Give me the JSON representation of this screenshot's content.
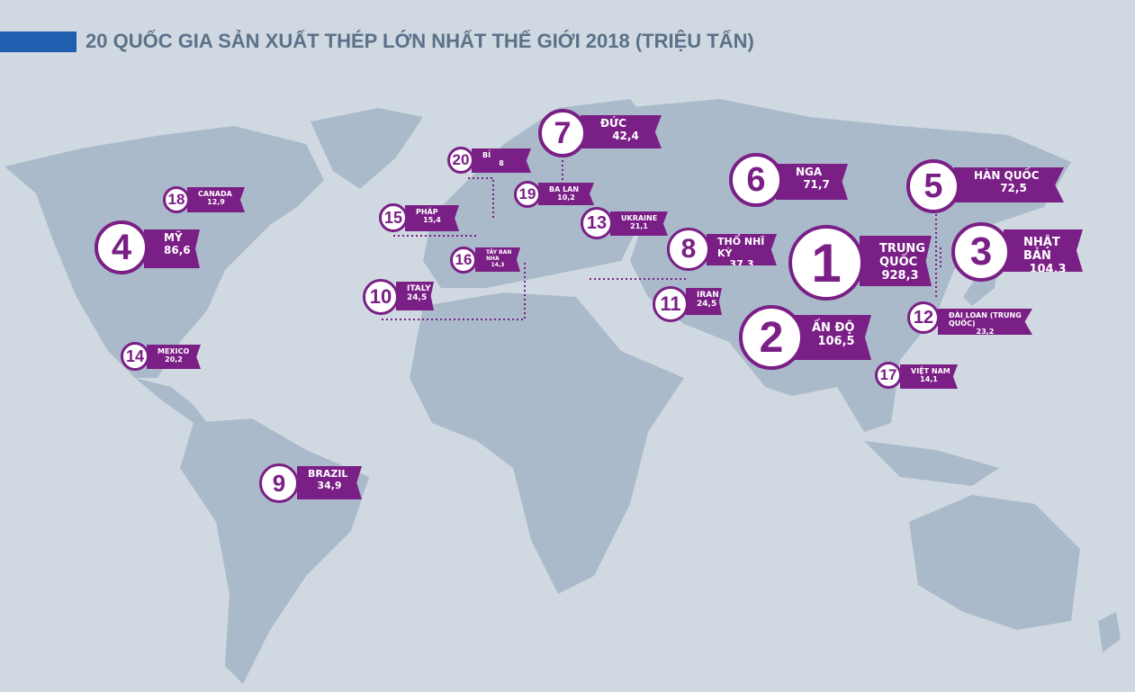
{
  "header": {
    "title": "20 QUỐC GIA SẢN XUẤT THÉP LỚN NHẤT THẾ GIỚI 2018 (TRIỆU TẤN)"
  },
  "markers": [
    {
      "rank": "1",
      "name": "TRUNG QUỐC",
      "value": "928,3"
    },
    {
      "rank": "2",
      "name": "ẤN ĐỘ",
      "value": "106,5"
    },
    {
      "rank": "3",
      "name": "NHẬT BẢN",
      "value": "104,3"
    },
    {
      "rank": "4",
      "name": "MỸ",
      "value": "86,6"
    },
    {
      "rank": "5",
      "name": "HÀN QUỐC",
      "value": "72,5"
    },
    {
      "rank": "6",
      "name": "NGA",
      "value": "71,7"
    },
    {
      "rank": "7",
      "name": "ĐỨC",
      "value": "42,4"
    },
    {
      "rank": "8",
      "name": "THỔ NHĨ KỲ",
      "value": "37,3"
    },
    {
      "rank": "9",
      "name": "BRAZIL",
      "value": "34,9"
    },
    {
      "rank": "10",
      "name": "ITALY",
      "value": "24,5"
    },
    {
      "rank": "11",
      "name": "IRAN",
      "value": "24,5"
    },
    {
      "rank": "12",
      "name": "ĐÀI LOAN (TRUNG QUỐC)",
      "value": "23,2"
    },
    {
      "rank": "13",
      "name": "UKRAINE",
      "value": "21,1"
    },
    {
      "rank": "14",
      "name": "MEXICO",
      "value": "20,2"
    },
    {
      "rank": "15",
      "name": "PHÁP",
      "value": "15,4"
    },
    {
      "rank": "16",
      "name": "TÂY BAN NHA",
      "value": "14,3"
    },
    {
      "rank": "17",
      "name": "VIỆT NAM",
      "value": "14,1"
    },
    {
      "rank": "18",
      "name": "CANADA",
      "value": "12,9"
    },
    {
      "rank": "19",
      "name": "BA LAN",
      "value": "10,2"
    },
    {
      "rank": "20",
      "name": "BỈ",
      "value": "8"
    }
  ]
}
